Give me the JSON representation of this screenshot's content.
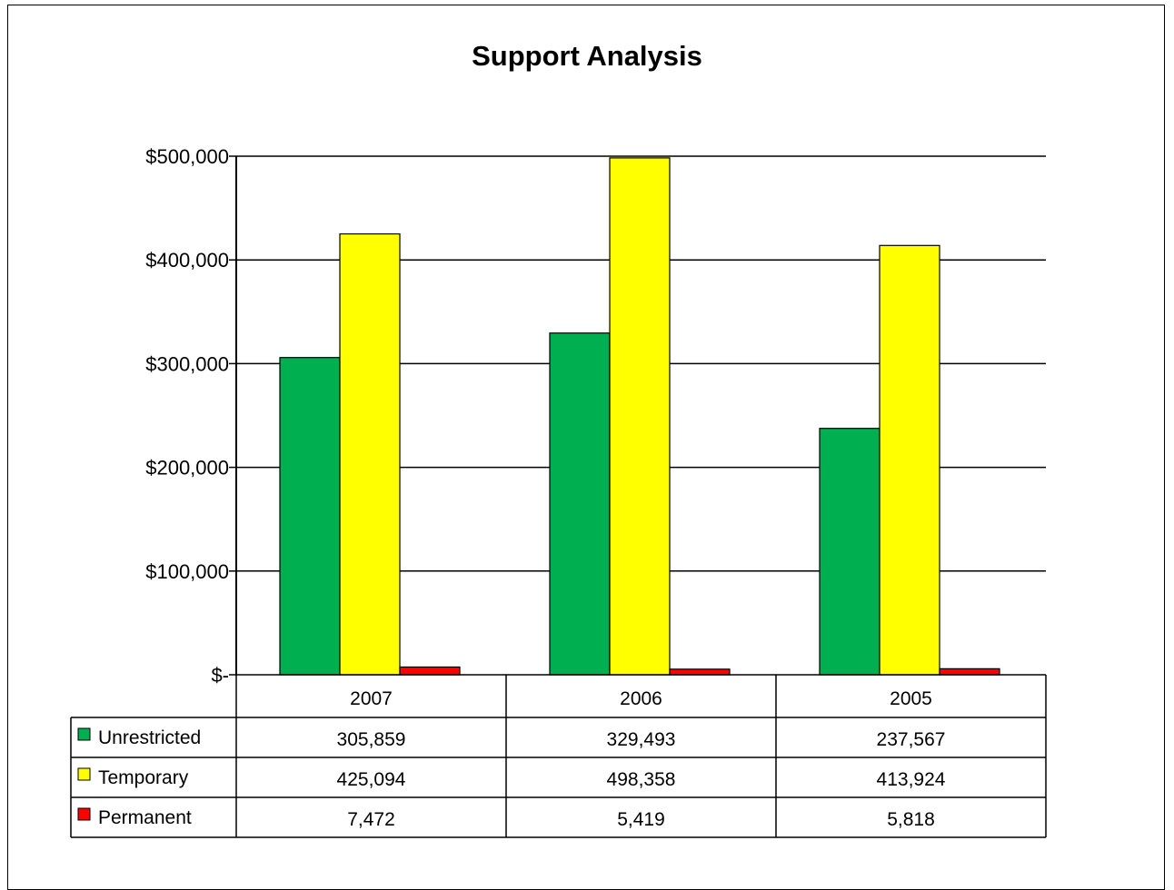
{
  "chart_data": {
    "type": "bar",
    "title": "Support Analysis",
    "categories": [
      "2007",
      "2006",
      "2005"
    ],
    "series": [
      {
        "name": "Unrestricted",
        "color": "#00b050",
        "values": [
          305859,
          329493,
          237567
        ],
        "labels": [
          "305,859",
          "329,493",
          "237,567"
        ]
      },
      {
        "name": "Temporary",
        "color": "#ffff00",
        "values": [
          425094,
          498358,
          413924
        ],
        "labels": [
          "425,094",
          "498,358",
          "413,924"
        ]
      },
      {
        "name": "Permanent",
        "color": "#ff0000",
        "values": [
          7472,
          5419,
          5818
        ],
        "labels": [
          "7,472",
          "5,419",
          "5,818"
        ]
      }
    ],
    "ylim": [
      0,
      500000
    ],
    "ytick_values": [
      0,
      100000,
      200000,
      300000,
      400000,
      500000
    ],
    "ytick_labels": [
      "$-",
      "$100,000",
      "$200,000",
      "$300,000",
      "$400,000",
      "$500,000"
    ],
    "grid": true,
    "legend_placement": "data-table"
  }
}
